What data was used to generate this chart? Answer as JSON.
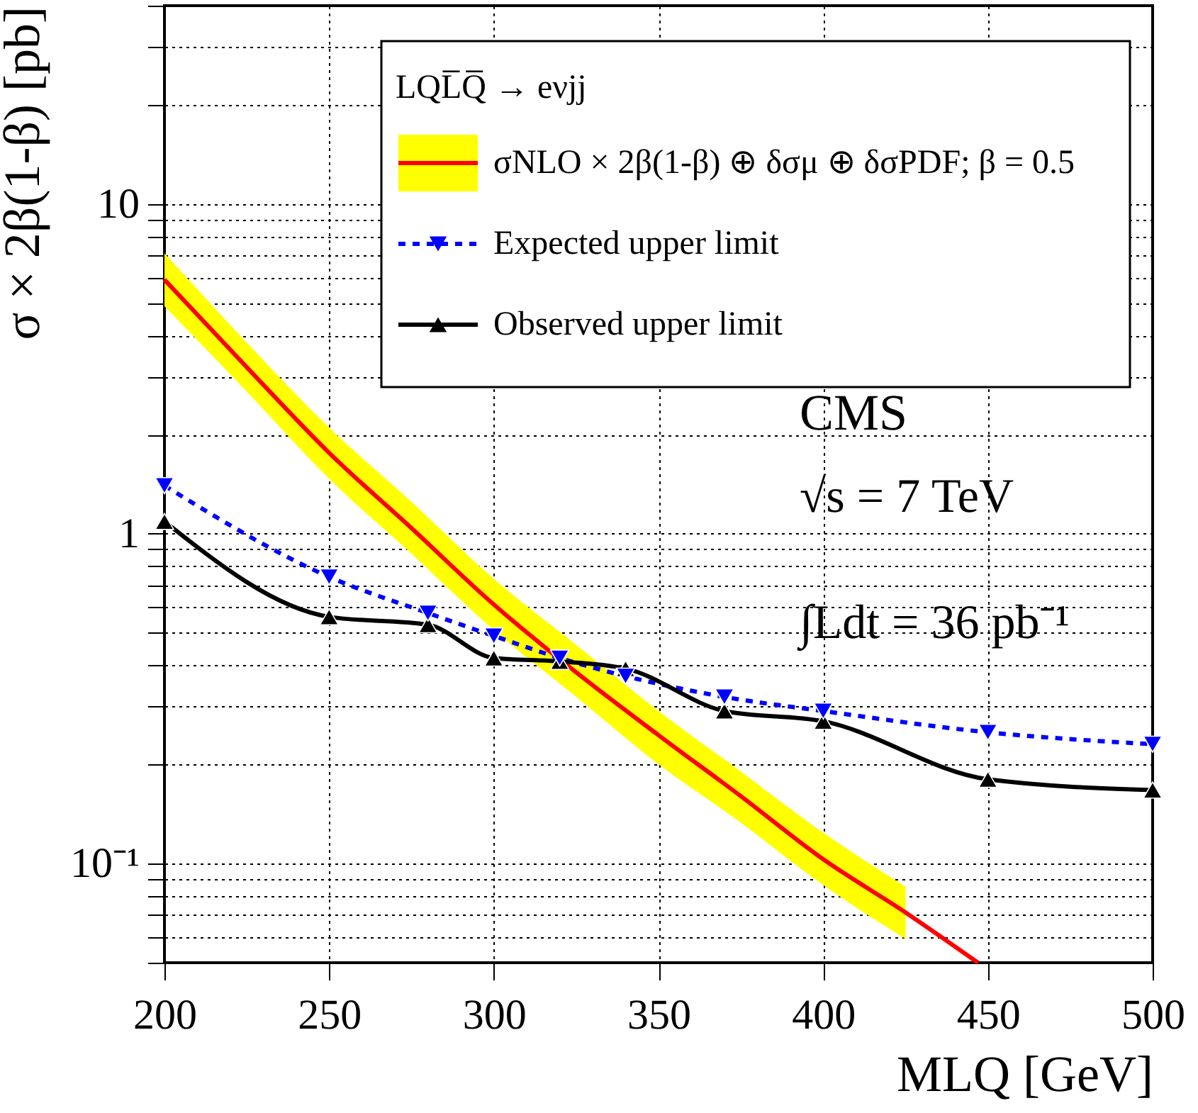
{
  "chart_data": {
    "type": "line",
    "xlabel": "MLQ [GeV]",
    "ylabel": "σ × 2β(1-β) [pb]",
    "legend_title": "LQL̅Q̅ → eνjj",
    "annotations": [
      "CMS",
      "√s = 7 TeV",
      "∫Ldt = 36 pb⁻¹"
    ],
    "xlim": [
      200,
      500
    ],
    "xticks": [
      200,
      250,
      300,
      350,
      400,
      450,
      500
    ],
    "ylim": [
      0.05,
      40
    ],
    "log": true,
    "yticks": [
      {
        "value": 0.05,
        "label": null
      },
      {
        "value": 0.06,
        "label": null
      },
      {
        "value": 0.07,
        "label": null
      },
      {
        "value": 0.08,
        "label": null
      },
      {
        "value": 0.09,
        "label": null
      },
      {
        "value": 0.1,
        "label": "10⁻¹"
      },
      {
        "value": 0.2,
        "label": null
      },
      {
        "value": 0.3,
        "label": null
      },
      {
        "value": 0.4,
        "label": null
      },
      {
        "value": 0.5,
        "label": null
      },
      {
        "value": 0.6,
        "label": null
      },
      {
        "value": 0.7,
        "label": null
      },
      {
        "value": 0.8,
        "label": null
      },
      {
        "value": 0.9,
        "label": null
      },
      1,
      {
        "value": 2,
        "label": null
      },
      {
        "value": 3,
        "label": null
      },
      {
        "value": 4,
        "label": null
      },
      {
        "value": 5,
        "label": null
      },
      {
        "value": 6,
        "label": null
      },
      {
        "value": 7,
        "label": null
      },
      {
        "value": 8,
        "label": null
      },
      {
        "value": 9,
        "label": null
      },
      10,
      {
        "value": 20,
        "label": null
      },
      {
        "value": 30,
        "label": null
      },
      {
        "value": 40,
        "label": null
      }
    ],
    "grid": true,
    "legend": "top right",
    "series": [
      {
        "name": "σNLO × 2β(1-β) ⊕ δσμ ⊕ δσPDF; β = 0.5",
        "color": "#ff0000",
        "marker": "none",
        "line_style": "solid",
        "x": [
          200,
          225,
          250,
          275,
          300,
          325,
          350,
          375,
          400,
          425,
          447
        ],
        "values": [
          5.9,
          3.2,
          1.76,
          1.04,
          0.61,
          0.38,
          0.245,
          0.16,
          0.103,
          0.071,
          0.05
        ],
        "upper": [
          7.1,
          3.8,
          2.1,
          1.25,
          0.73,
          0.46,
          0.29,
          0.19,
          0.124,
          0.085,
          null
        ],
        "lower": [
          4.9,
          2.7,
          1.47,
          0.87,
          0.51,
          0.32,
          0.2,
          0.133,
          0.086,
          0.059,
          null
        ]
      },
      {
        "name": "Expected upper limit",
        "color": "#0000ff",
        "marker": "triangle-down",
        "line_style": "dashed",
        "x": [
          200,
          250,
          280,
          300,
          320,
          340,
          370,
          400,
          450,
          500
        ],
        "values": [
          1.4,
          0.74,
          0.575,
          0.49,
          0.42,
          0.37,
          0.32,
          0.29,
          0.25,
          0.23
        ]
      },
      {
        "name": "Observed upper limit",
        "color": "#000000",
        "marker": "triangle",
        "line_style": "solid",
        "x": [
          200,
          250,
          280,
          300,
          320,
          340,
          370,
          400,
          450,
          500
        ],
        "values": [
          1.09,
          0.56,
          0.53,
          0.42,
          0.41,
          0.39,
          0.29,
          0.27,
          0.18,
          0.167
        ]
      }
    ]
  }
}
